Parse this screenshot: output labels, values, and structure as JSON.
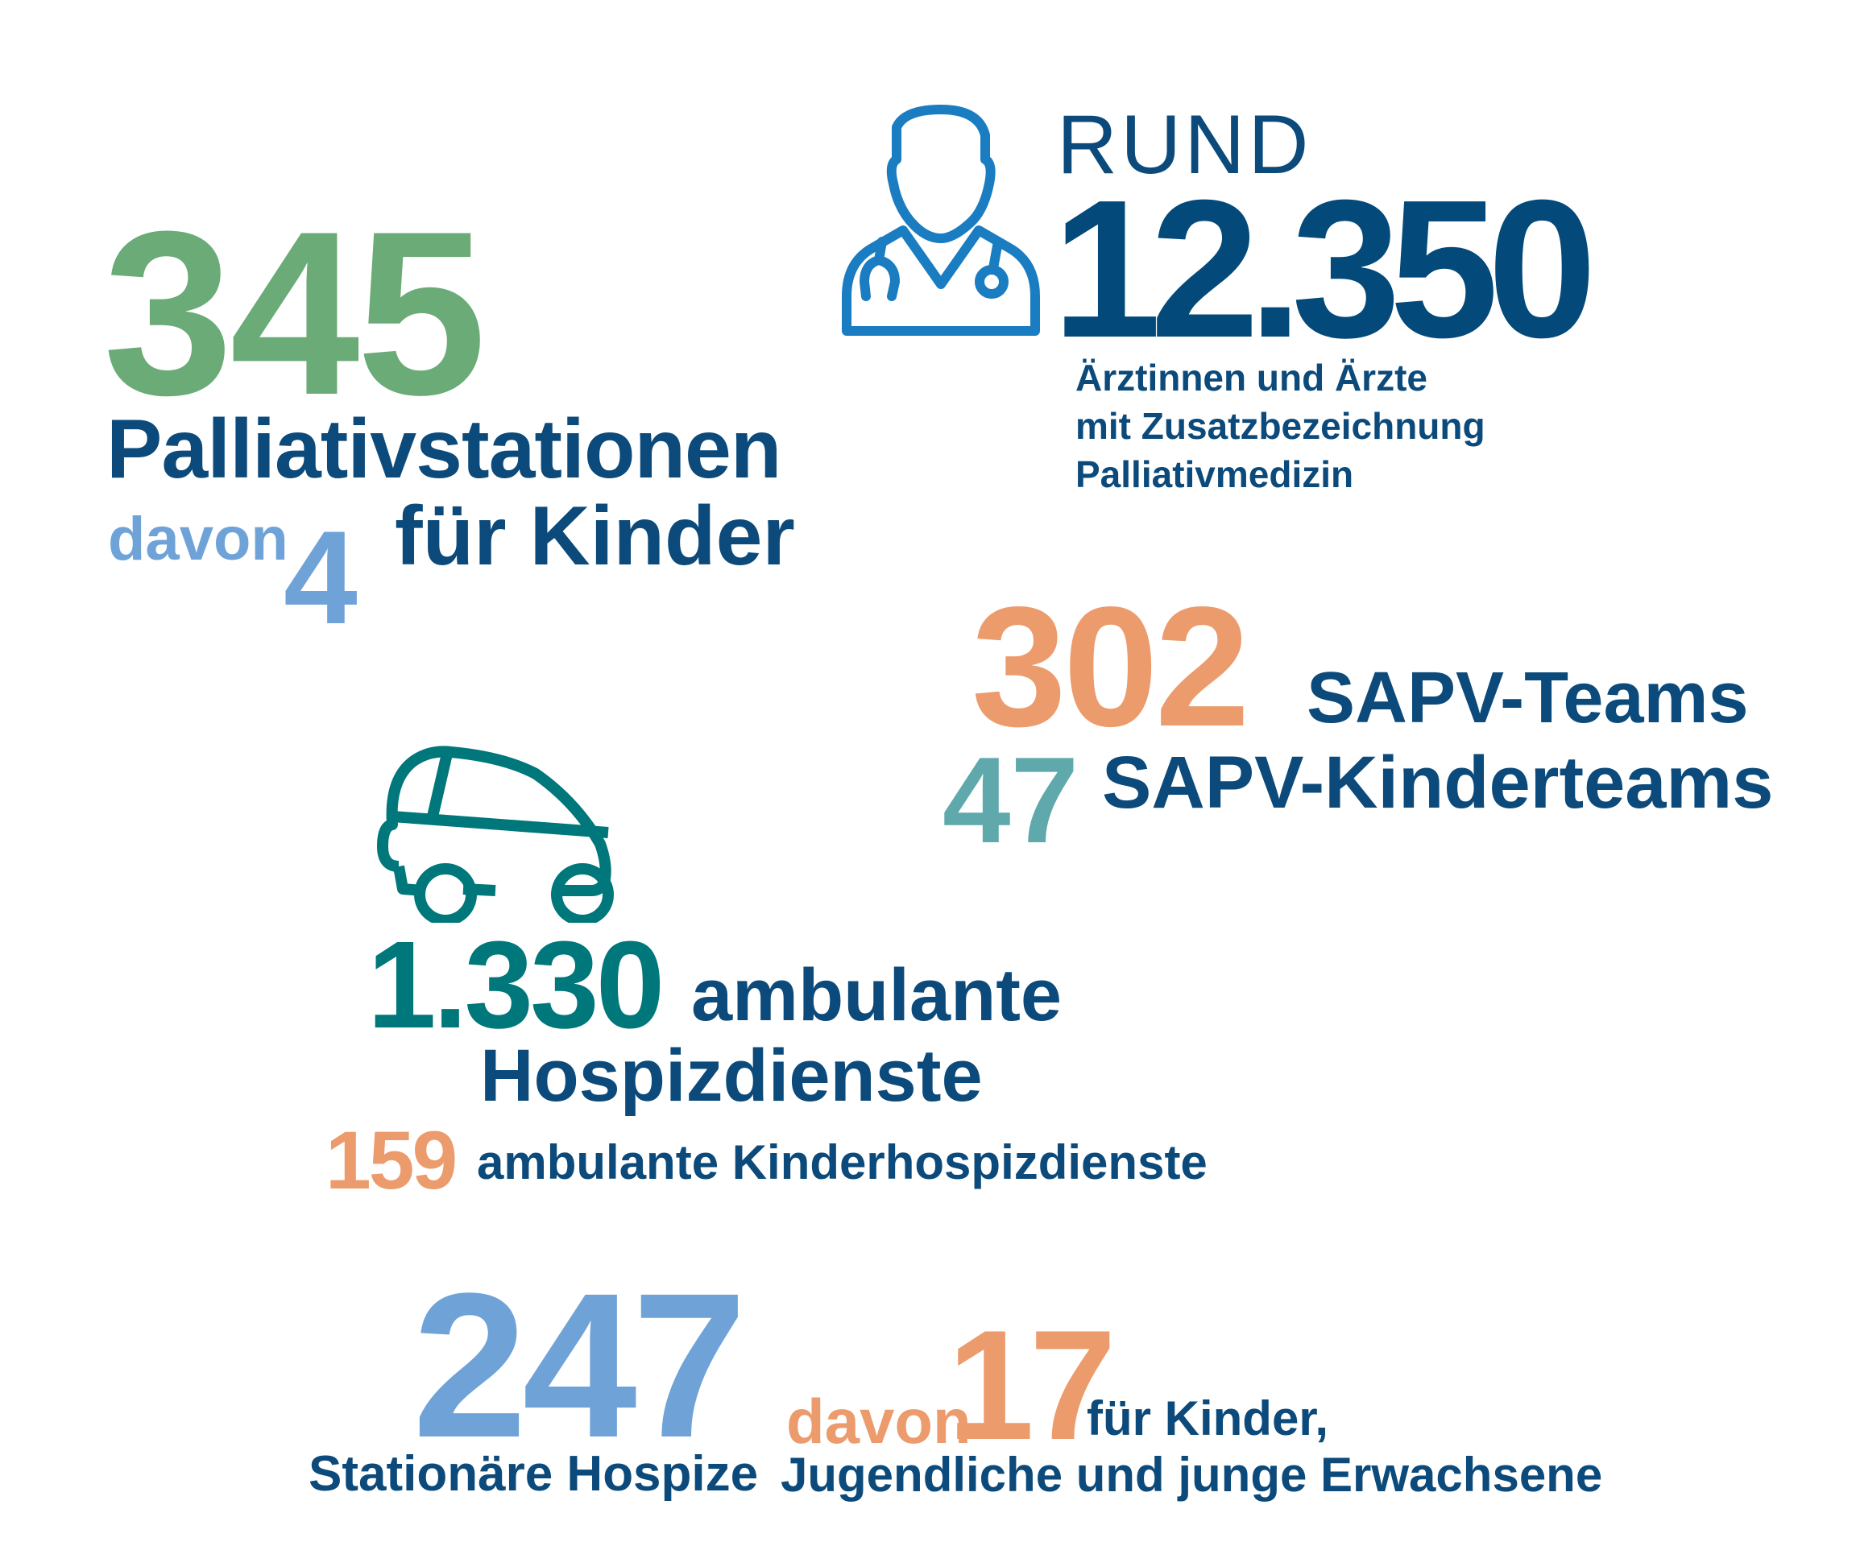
{
  "colors": {
    "dark_blue": "#0b4a7a",
    "green": "#6aab78",
    "light_blue": "#6fa3d8",
    "icon_blue": "#1a7cc1",
    "orange": "#ec9b6c",
    "teal": "#00777a",
    "light_teal": "#5fa8ab"
  },
  "palliativ": {
    "number": "345",
    "label": "Palliativstationen",
    "davon": "davon",
    "kids_number": "4",
    "kids_label": "für Kinder"
  },
  "doctors": {
    "icon": "doctor-stethoscope-icon",
    "prefix": "RUND",
    "number": "12.350",
    "lines": [
      "Ärztinnen und Ärzte",
      "mit Zusatzbezeichnung",
      "Palliativmedizin"
    ]
  },
  "sapv": {
    "number": "302",
    "label": "SAPV-Teams",
    "kids_number": "47",
    "kids_label": "SAPV-Kinderteams"
  },
  "ambulant": {
    "icon": "car-icon",
    "number": "1.330",
    "label_1": "ambulante",
    "label_2": "Hospizdienste",
    "kids_number": "159",
    "kids_label": "ambulante Kinderhospizdienste"
  },
  "hospize": {
    "number": "247",
    "label": "Stationäre Hospize",
    "davon": "davon",
    "kids_number": "17",
    "kids_label_1": "für Kinder,",
    "kids_label_2": "Jugendliche und junge Erwachsene"
  }
}
